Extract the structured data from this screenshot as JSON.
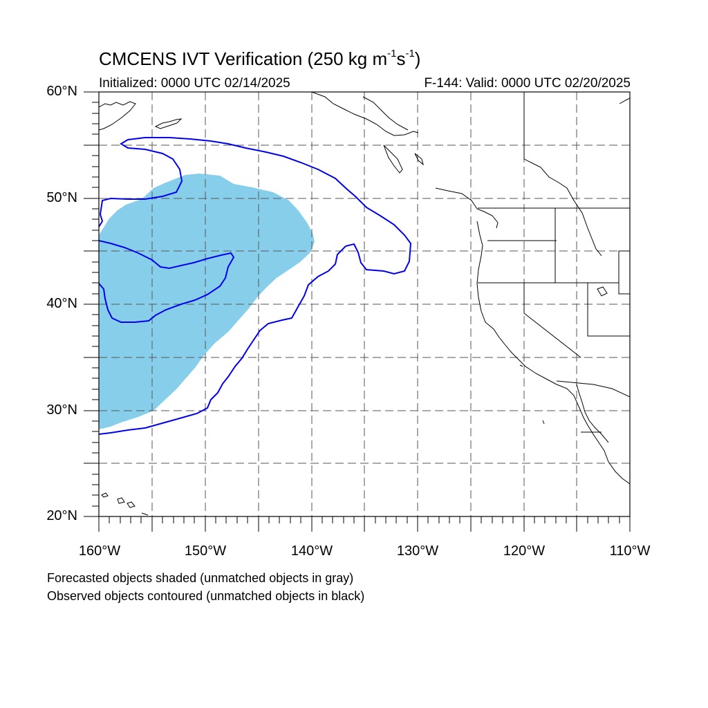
{
  "header": {
    "title_main": "CMCENS IVT Verification (250 kg m",
    "title_sup1": "-1",
    "title_s": "s",
    "title_sup2": "-1",
    "title_end": ")",
    "initialized": "Initialized: 0000 UTC 02/14/2025",
    "valid": "F-144: Valid: 0000 UTC 02/20/2025"
  },
  "axes": {
    "lat_labels": [
      "60°N",
      "50°N",
      "40°N",
      "30°N",
      "20°N"
    ],
    "lon_labels": [
      "160°W",
      "150°W",
      "140°W",
      "130°W",
      "120°W",
      "110°W"
    ],
    "lat_range": [
      20,
      60
    ],
    "lon_range": [
      -160,
      -110
    ],
    "grid": "dashed every 5°"
  },
  "legend": {
    "line1": "Forecasted objects shaded (unmatched objects in gray)",
    "line2": "Observed objects contoured (unmatched objects in black)"
  },
  "colors": {
    "forecast_fill": "#87ceeb",
    "observed_contour": "#0000ee",
    "coastline": "#000000",
    "grid": "#555555"
  }
}
